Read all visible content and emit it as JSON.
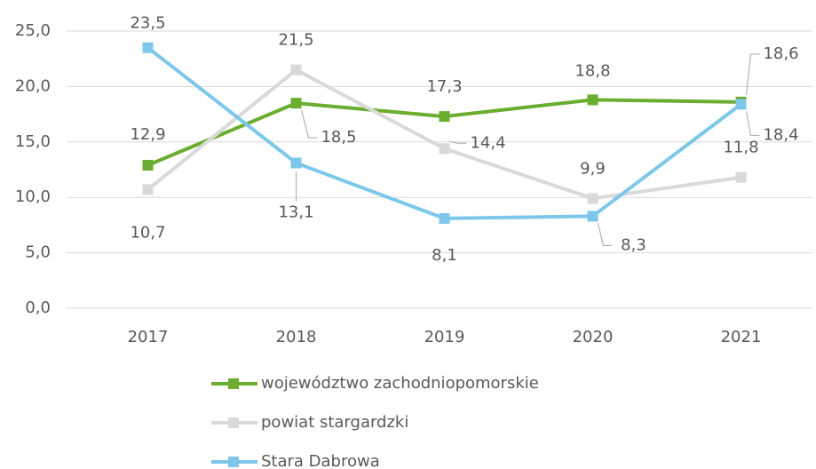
{
  "chart_data": {
    "type": "line",
    "categories": [
      "2017",
      "2018",
      "2019",
      "2020",
      "2021"
    ],
    "series": [
      {
        "name": "województwo zachodniopomorskie",
        "color": "#6aad2f",
        "values": [
          12.9,
          18.5,
          17.3,
          18.8,
          18.6
        ],
        "value_labels": [
          "12,9",
          "18,5",
          "17,3",
          "18,8",
          "18,6"
        ]
      },
      {
        "name": "powiat stargardzki",
        "color": "#d9d9d9",
        "values": [
          10.7,
          21.5,
          14.4,
          9.9,
          11.8
        ],
        "value_labels": [
          "10,7",
          "21,5",
          "14,4",
          "9,9",
          "11,8"
        ]
      },
      {
        "name": "Stara Dabrowa",
        "color": "#7cc7ea",
        "values": [
          23.5,
          13.1,
          8.1,
          8.3,
          18.4
        ],
        "value_labels": [
          "23,5",
          "13,1",
          "8,1",
          "8,3",
          "18,4"
        ]
      }
    ],
    "ylim": [
      0,
      25
    ],
    "yticks": [
      {
        "value": 0,
        "label": "0,0"
      },
      {
        "value": 5,
        "label": "5,0"
      },
      {
        "value": 10,
        "label": "10,0"
      },
      {
        "value": 15,
        "label": "15,0"
      },
      {
        "value": 20,
        "label": "20,0"
      },
      {
        "value": 25,
        "label": "25,0"
      }
    ],
    "grid": true,
    "legend": "bottom"
  }
}
